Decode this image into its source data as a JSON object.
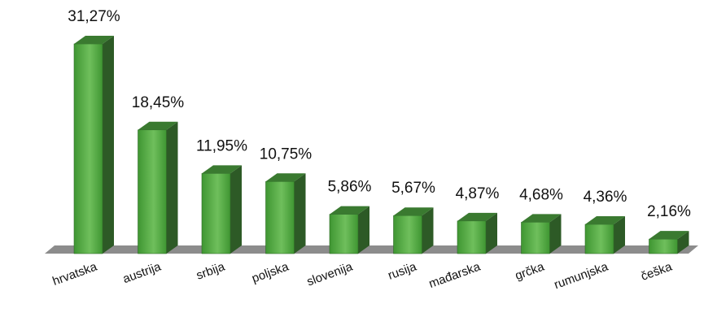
{
  "chart_data": {
    "type": "bar",
    "categories": [
      "hrvatska",
      "austrija",
      "srbija",
      "poljska",
      "slovenija",
      "rusija",
      "mađarska",
      "grčka",
      "rumunjska",
      "češka"
    ],
    "values": [
      31.27,
      18.45,
      11.95,
      10.75,
      5.86,
      5.67,
      4.87,
      4.68,
      4.36,
      2.16
    ],
    "value_labels": [
      "31,27%",
      "18,45%",
      "11,95%",
      "10,75%",
      "5,86%",
      "5,67%",
      "4,87%",
      "4,68%",
      "4,36%",
      "2,16%"
    ],
    "title": "",
    "xlabel": "",
    "ylabel": "",
    "ylim": [
      0,
      31.27
    ],
    "grid": false,
    "legend": "none",
    "three_d": true,
    "colors": {
      "bar_front_light": "#6fbf5c",
      "bar_front_dark": "#3f9632",
      "bar_side": "#2d5a26",
      "bar_top": "#3a7a30",
      "floor": "#8c8c8c"
    }
  }
}
